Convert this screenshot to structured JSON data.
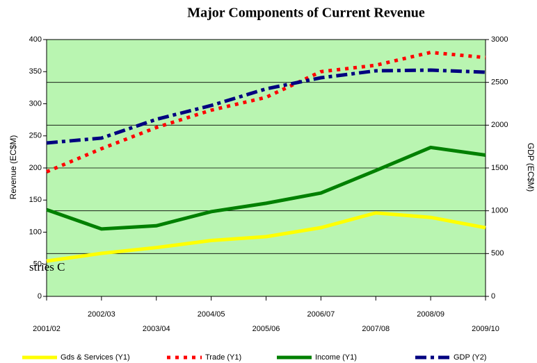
{
  "chart_data": {
    "type": "line",
    "title": "Major Components of Current Revenue",
    "annotation": "stries C",
    "ylabel": "Revenue (EC$M)",
    "y2label": "GDP (EC$M)",
    "categories": [
      "2001/02",
      "2002/03",
      "2003/04",
      "2004/05",
      "2005/06",
      "2006/07",
      "2007/08",
      "2008/09",
      "2009/10"
    ],
    "series": [
      {
        "name": "Gds & Services (Y1)",
        "color": "#ffff00",
        "dash": "solid",
        "values": [
          55,
          67,
          76,
          87,
          93,
          107,
          130,
          123,
          107
        ]
      },
      {
        "name": "Trade  (Y1)",
        "color": "#ff0000",
        "dash": "dotted",
        "values": [
          194,
          230,
          263,
          290,
          310,
          350,
          360,
          380,
          372
        ]
      },
      {
        "name": "Income (Y1)",
        "color": "#008000",
        "dash": "solid",
        "values": [
          135,
          105,
          110,
          132,
          145,
          161,
          196,
          232,
          220
        ]
      },
      {
        "name": "GDP (Y2)",
        "color": "#000080",
        "dash": "dashdot",
        "axis": "y2",
        "values": [
          1792,
          1849,
          2068,
          2230,
          2424,
          2554,
          2635,
          2643,
          2619
        ]
      }
    ],
    "ylim": [
      0,
      400
    ],
    "yticks": [
      0,
      50,
      100,
      150,
      200,
      250,
      300,
      350,
      400
    ],
    "y2lim": [
      0,
      3000
    ],
    "y2ticks": [
      0,
      500,
      1000,
      1500,
      2000,
      2500,
      3000
    ],
    "grid": true,
    "background": "#b9f5b1"
  }
}
